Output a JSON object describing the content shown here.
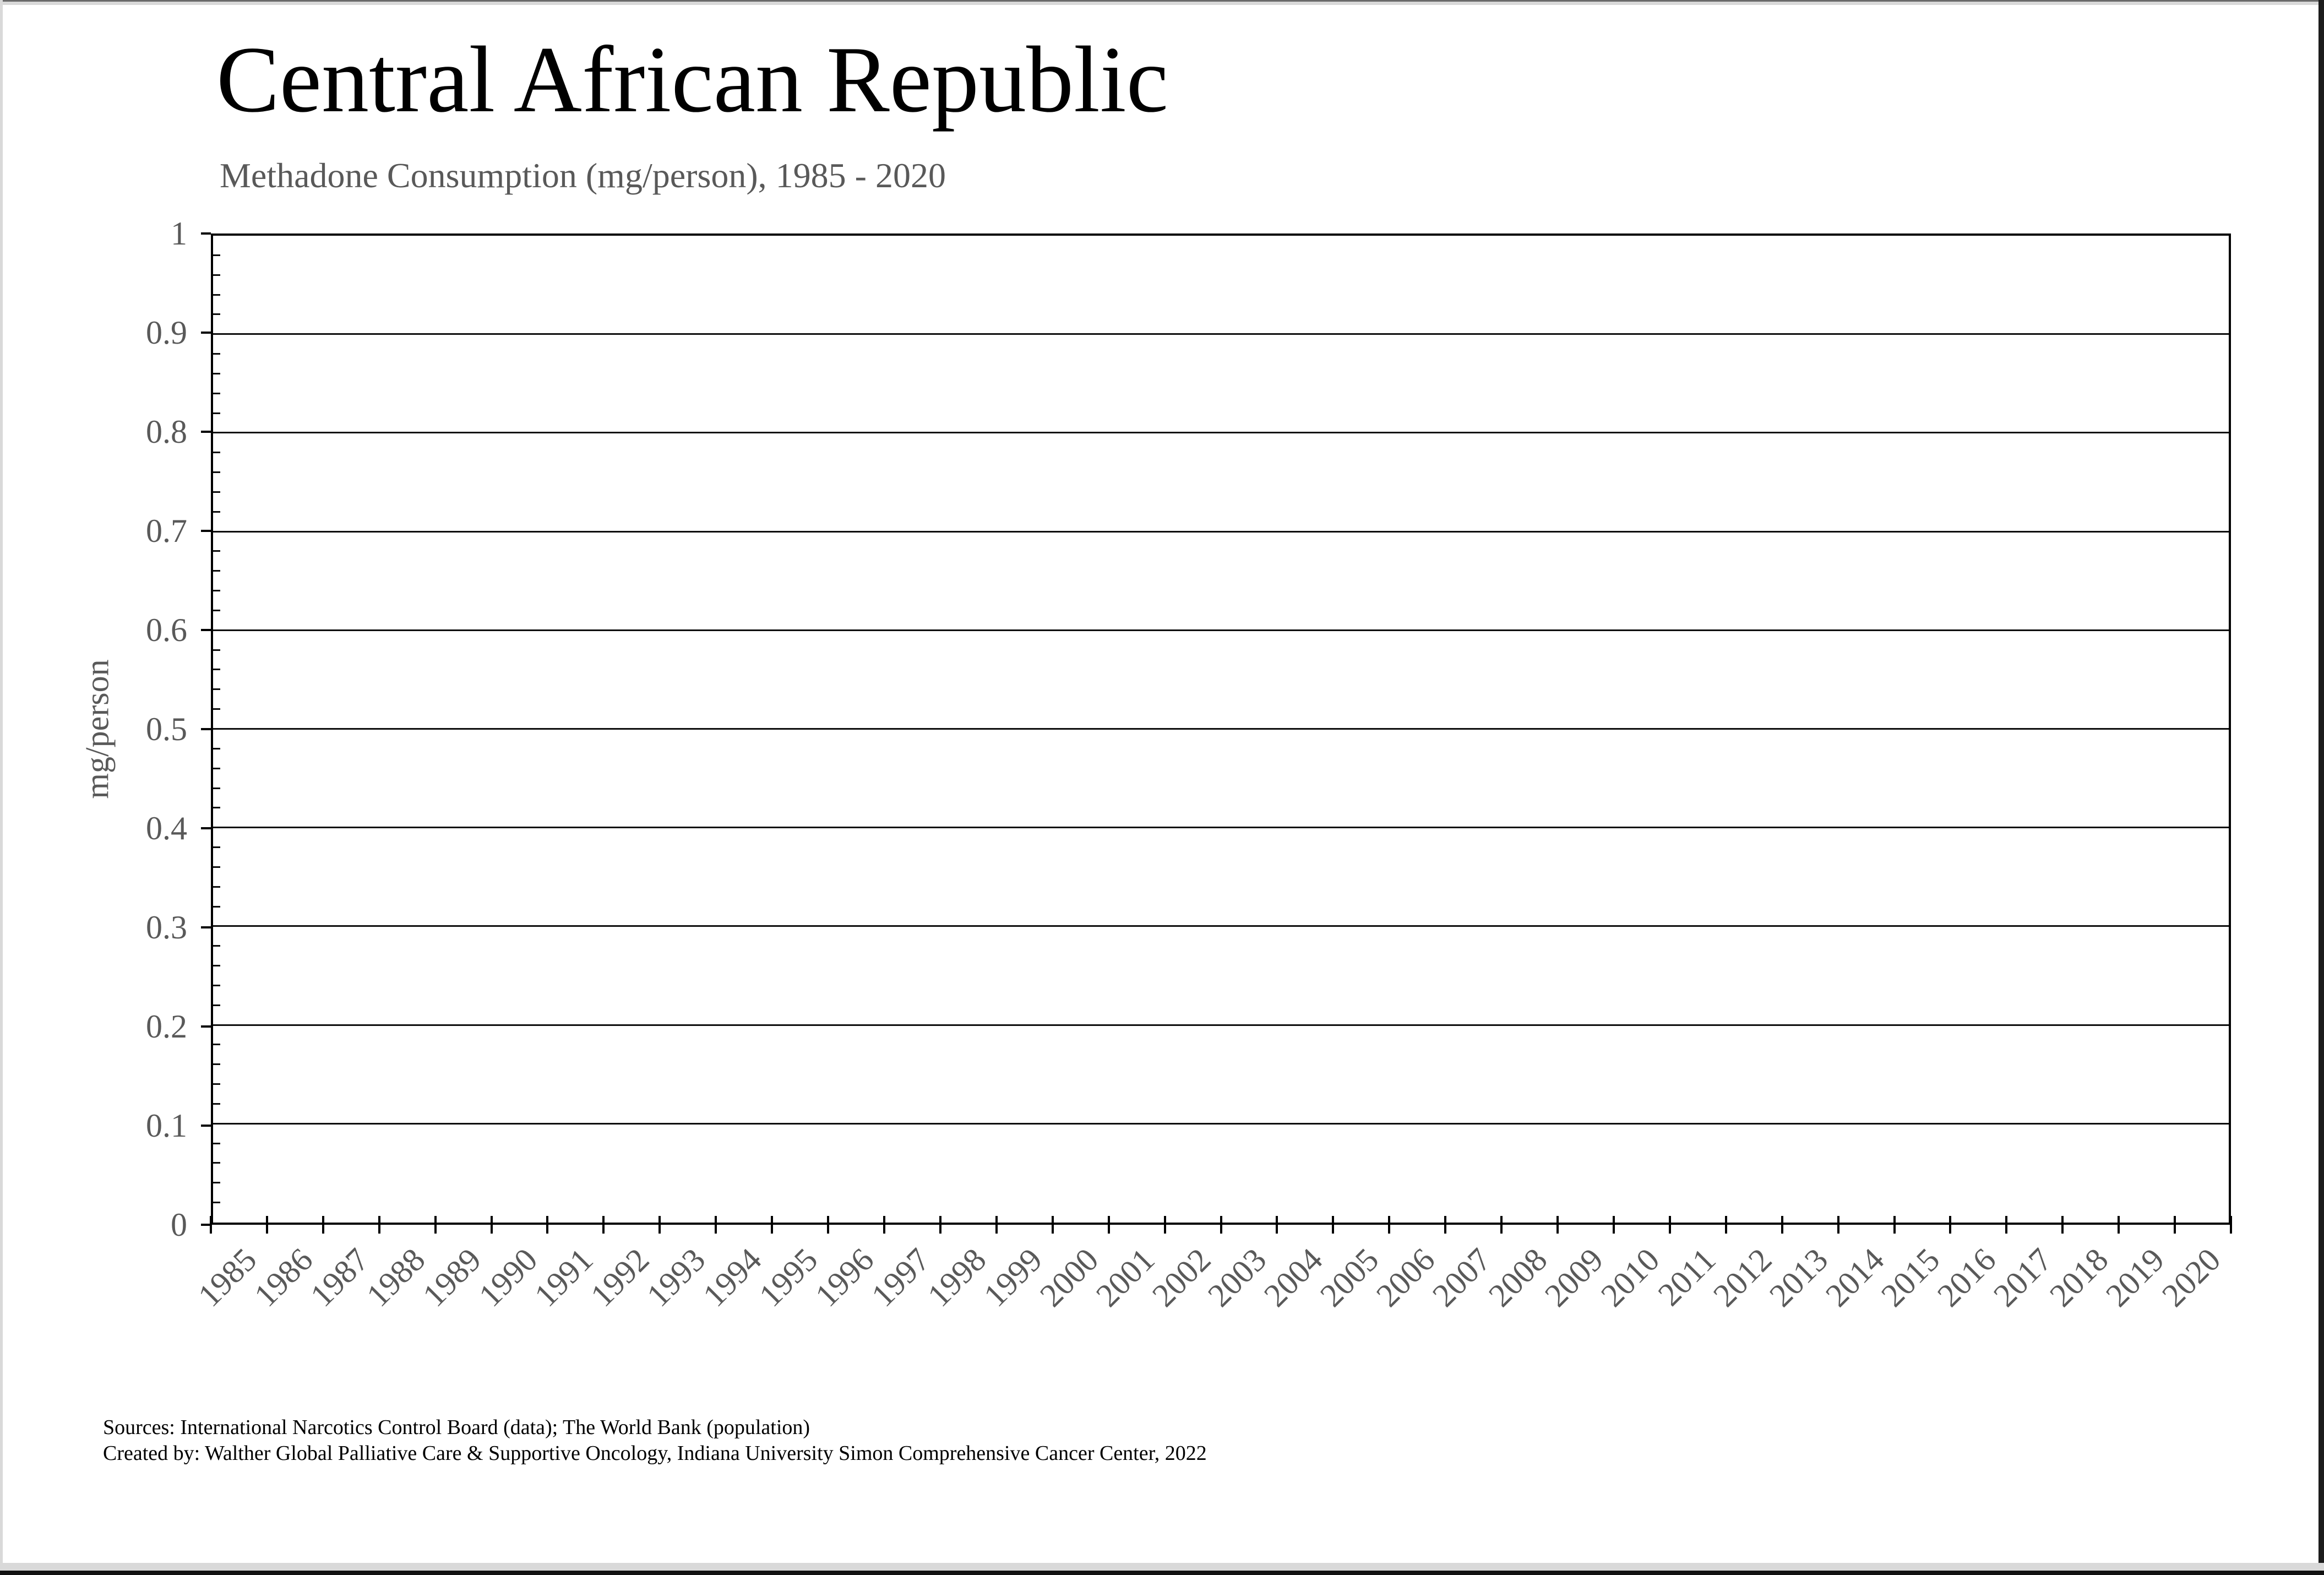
{
  "header": {
    "title": "Central African Republic",
    "subtitle": "Methadone Consumption (mg/person), 1985 - 2020"
  },
  "chart_data": {
    "type": "line",
    "title": "Central African Republic",
    "subtitle": "Methadone Consumption (mg/person), 1985 - 2020",
    "xlabel": "",
    "ylabel": "mg/person",
    "ylim": [
      0,
      1
    ],
    "yticks": [
      "1",
      "0.9",
      "0.8",
      "0.7",
      "0.6",
      "0.5",
      "0.4",
      "0.3",
      "0.2",
      "0.1",
      "0"
    ],
    "minor_ticks_per_major": 5,
    "grid": "horizontal-major",
    "legend": "none",
    "categories": [
      "1985",
      "1986",
      "1987",
      "1988",
      "1989",
      "1990",
      "1991",
      "1992",
      "1993",
      "1994",
      "1995",
      "1996",
      "1997",
      "1998",
      "1999",
      "2000",
      "2001",
      "2002",
      "2003",
      "2004",
      "2005",
      "2006",
      "2007",
      "2008",
      "2009",
      "2010",
      "2011",
      "2012",
      "2013",
      "2014",
      "2015",
      "2016",
      "2017",
      "2018",
      "2019",
      "2020"
    ],
    "series": [
      {
        "name": "Methadone Consumption (mg/person)",
        "values": [
          null,
          null,
          null,
          null,
          null,
          null,
          null,
          null,
          null,
          null,
          null,
          null,
          null,
          null,
          null,
          null,
          null,
          null,
          null,
          null,
          null,
          null,
          null,
          null,
          null,
          null,
          null,
          null,
          null,
          null,
          null,
          null,
          null,
          null,
          null,
          null
        ]
      }
    ],
    "note": "No data points are visibly plotted; the chart area is empty."
  },
  "footer": {
    "line1": "Sources: International Narcotics Control Board (data); The World Bank (population)",
    "line2": "Created by: Walther Global Palliative Care & Supportive Oncology, Indiana University Simon Comprehensive Cancer Center, 2022"
  },
  "colors": {
    "text_primary": "#000000",
    "text_secondary": "#595959",
    "axis": "#000000",
    "gridline": "#0d0d0d",
    "frame_light": "#d9d9d9",
    "frame_dark": "#1c1c1c",
    "background": "#ffffff"
  }
}
